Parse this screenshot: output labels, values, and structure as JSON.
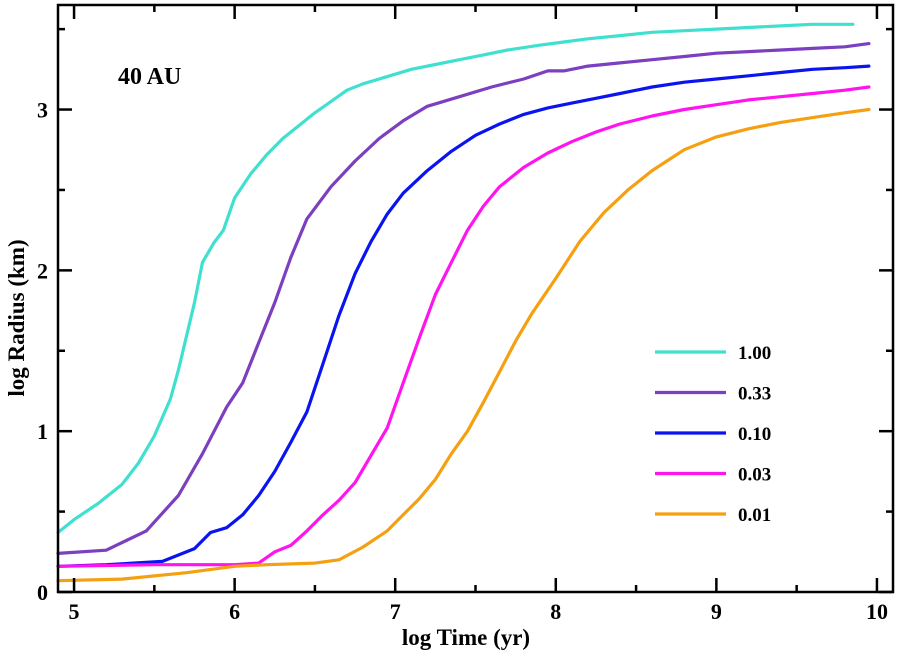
{
  "chart_data": {
    "type": "line",
    "title": "",
    "annotation": "40 AU",
    "xlabel": "log Time (yr)",
    "ylabel": "log Radius (km)",
    "xlim": [
      4.9,
      10.1
    ],
    "ylim": [
      0,
      3.65
    ],
    "xticks": [
      5,
      6,
      7,
      8,
      9,
      10
    ],
    "yticks": [
      0,
      1,
      2,
      3
    ],
    "xtick_labels": [
      "5",
      "6",
      "7",
      "8",
      "9",
      "10"
    ],
    "ytick_labels": [
      "0",
      "1",
      "2",
      "3"
    ],
    "grid": false,
    "legend_position": "bottom-right",
    "series": [
      {
        "name": "1.00",
        "color": "#40e0d0",
        "x": [
          4.9,
          5.0,
          5.15,
          5.3,
          5.4,
          5.5,
          5.6,
          5.65,
          5.75,
          5.8,
          5.87,
          5.93,
          6.0,
          6.1,
          6.2,
          6.3,
          6.4,
          6.5,
          6.6,
          6.7,
          6.8,
          6.9,
          7.0,
          7.1,
          7.25,
          7.4,
          7.55,
          7.7,
          7.9,
          8.05,
          8.2,
          8.4,
          8.6,
          8.8,
          9.0,
          9.2,
          9.4,
          9.6,
          9.8,
          9.85
        ],
        "y": [
          0.37,
          0.45,
          0.55,
          0.67,
          0.8,
          0.97,
          1.2,
          1.38,
          1.8,
          2.05,
          2.17,
          2.25,
          2.45,
          2.6,
          2.72,
          2.82,
          2.9,
          2.98,
          3.05,
          3.12,
          3.16,
          3.19,
          3.22,
          3.25,
          3.28,
          3.31,
          3.34,
          3.37,
          3.4,
          3.42,
          3.44,
          3.46,
          3.48,
          3.49,
          3.5,
          3.51,
          3.52,
          3.53,
          3.53,
          3.53
        ]
      },
      {
        "name": "0.33",
        "color": "#7b3fbf",
        "x": [
          4.9,
          5.2,
          5.45,
          5.65,
          5.8,
          5.95,
          6.05,
          6.15,
          6.25,
          6.35,
          6.45,
          6.6,
          6.75,
          6.9,
          7.05,
          7.2,
          7.4,
          7.6,
          7.8,
          7.95,
          8.05,
          8.2,
          8.4,
          8.6,
          8.8,
          9.0,
          9.2,
          9.4,
          9.6,
          9.8,
          9.95
        ],
        "y": [
          0.24,
          0.26,
          0.38,
          0.6,
          0.86,
          1.15,
          1.3,
          1.55,
          1.8,
          2.08,
          2.32,
          2.52,
          2.68,
          2.82,
          2.93,
          3.02,
          3.08,
          3.14,
          3.19,
          3.24,
          3.24,
          3.27,
          3.29,
          3.31,
          3.33,
          3.35,
          3.36,
          3.37,
          3.38,
          3.39,
          3.41
        ]
      },
      {
        "name": "0.10",
        "color": "#0a14f0",
        "x": [
          4.9,
          5.2,
          5.55,
          5.75,
          5.85,
          5.95,
          6.05,
          6.15,
          6.25,
          6.35,
          6.45,
          6.55,
          6.65,
          6.75,
          6.85,
          6.95,
          7.05,
          7.2,
          7.35,
          7.5,
          7.65,
          7.8,
          7.95,
          8.1,
          8.25,
          8.4,
          8.6,
          8.8,
          9.0,
          9.2,
          9.4,
          9.6,
          9.8,
          9.95
        ],
        "y": [
          0.16,
          0.17,
          0.19,
          0.27,
          0.37,
          0.4,
          0.48,
          0.6,
          0.75,
          0.93,
          1.12,
          1.42,
          1.72,
          1.98,
          2.18,
          2.35,
          2.48,
          2.62,
          2.74,
          2.84,
          2.91,
          2.97,
          3.01,
          3.04,
          3.07,
          3.1,
          3.14,
          3.17,
          3.19,
          3.21,
          3.23,
          3.25,
          3.26,
          3.27
        ]
      },
      {
        "name": "0.03",
        "color": "#ff14f0",
        "x": [
          4.9,
          5.5,
          6.0,
          6.15,
          6.25,
          6.35,
          6.45,
          6.55,
          6.65,
          6.75,
          6.85,
          6.95,
          7.05,
          7.15,
          7.25,
          7.35,
          7.45,
          7.55,
          7.65,
          7.8,
          7.95,
          8.1,
          8.25,
          8.4,
          8.6,
          8.8,
          9.0,
          9.2,
          9.4,
          9.6,
          9.8,
          9.95
        ],
        "y": [
          0.16,
          0.17,
          0.17,
          0.18,
          0.25,
          0.29,
          0.38,
          0.48,
          0.57,
          0.68,
          0.85,
          1.02,
          1.3,
          1.58,
          1.85,
          2.05,
          2.25,
          2.4,
          2.52,
          2.64,
          2.73,
          2.8,
          2.86,
          2.91,
          2.96,
          3.0,
          3.03,
          3.06,
          3.08,
          3.1,
          3.12,
          3.14
        ]
      },
      {
        "name": "0.01",
        "color": "#f5a010",
        "x": [
          4.9,
          5.3,
          5.7,
          6.0,
          6.2,
          6.5,
          6.65,
          6.8,
          6.95,
          7.05,
          7.15,
          7.25,
          7.35,
          7.45,
          7.55,
          7.65,
          7.75,
          7.85,
          8.0,
          8.15,
          8.3,
          8.45,
          8.6,
          8.8,
          9.0,
          9.2,
          9.4,
          9.6,
          9.8,
          9.95
        ],
        "y": [
          0.07,
          0.08,
          0.12,
          0.16,
          0.17,
          0.18,
          0.2,
          0.28,
          0.38,
          0.48,
          0.58,
          0.7,
          0.86,
          1.0,
          1.18,
          1.37,
          1.56,
          1.73,
          1.95,
          2.18,
          2.36,
          2.5,
          2.62,
          2.75,
          2.83,
          2.88,
          2.92,
          2.95,
          2.98,
          3.0
        ]
      }
    ]
  }
}
